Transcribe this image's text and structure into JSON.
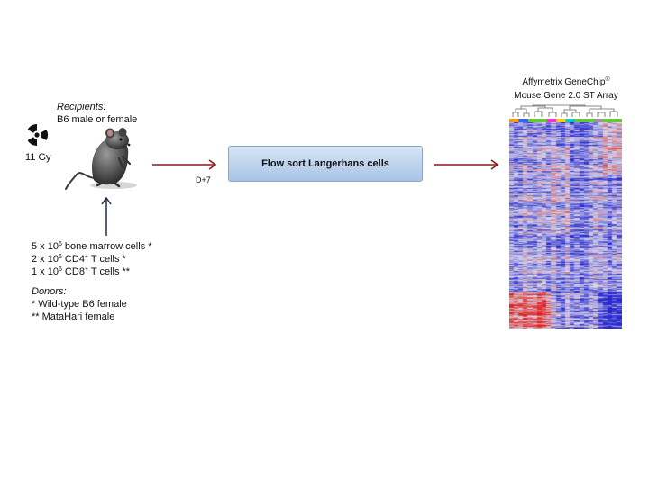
{
  "recipients": {
    "heading": "Recipients:",
    "text": "B6 male or female"
  },
  "radiation": {
    "icon": "radiation-icon",
    "dose": "11 Gy"
  },
  "mouse": {
    "icon": "mouse-icon"
  },
  "day_label": "D+7",
  "flow_sort_box": "Flow sort Langerhans cells",
  "cells": [
    {
      "pre": "5 x 10",
      "sup1": "6",
      "mid": " bone marrow cells *",
      "sup2": "",
      "post": ""
    },
    {
      "pre": "2 x 10",
      "sup1": "6",
      "mid": " CD4",
      "sup2": "+",
      "post": " T cells *"
    },
    {
      "pre": "1 x 10",
      "sup1": "6",
      "mid": " CD8",
      "sup2": "+",
      "post": " T cells **"
    }
  ],
  "donors": {
    "heading": "Donors:",
    "lines": [
      "* Wild-type B6 female",
      "** MataHari female"
    ]
  },
  "array": {
    "title_line1": "Affymetrix GeneChip",
    "title_mark": "®",
    "title_line2": "Mouse Gene 2.0 ST Array",
    "group_colors": [
      "#ff9900",
      "#3366ff",
      "#66cc33",
      "#66cc33",
      "#ff33cc",
      "#ffcc00",
      "#00cccc",
      "#66cc33",
      "#66cc33",
      "#999999",
      "#66cc33",
      "#66cc33"
    ],
    "heat_colors": {
      "low": "#2a2ad0",
      "mid": "#d8d8e8",
      "high": "#e02020"
    }
  },
  "colors": {
    "arrow_red": "#8b1a1a",
    "arrow_dark": "#1f2a44"
  }
}
